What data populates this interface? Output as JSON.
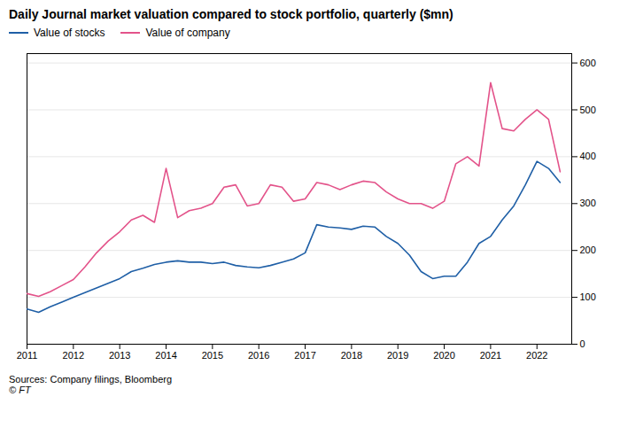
{
  "chart_data": {
    "type": "line",
    "title": "Daily Journal market valuation compared to stock portfolio, quarterly ($mn)",
    "x": [
      2011.0,
      2011.25,
      2011.5,
      2011.75,
      2012.0,
      2012.25,
      2012.5,
      2012.75,
      2013.0,
      2013.25,
      2013.5,
      2013.75,
      2014.0,
      2014.25,
      2014.5,
      2014.75,
      2015.0,
      2015.25,
      2015.5,
      2015.75,
      2016.0,
      2016.25,
      2016.5,
      2016.75,
      2017.0,
      2017.25,
      2017.5,
      2017.75,
      2018.0,
      2018.25,
      2018.5,
      2018.75,
      2019.0,
      2019.25,
      2019.5,
      2019.75,
      2020.0,
      2020.25,
      2020.5,
      2020.75,
      2021.0,
      2021.25,
      2021.5,
      2021.75,
      2022.0,
      2022.25,
      2022.5
    ],
    "series": [
      {
        "name": "Value of stocks",
        "color": "#1f5fa6",
        "values": [
          75,
          68,
          80,
          90,
          100,
          110,
          120,
          130,
          140,
          155,
          162,
          170,
          175,
          178,
          175,
          175,
          172,
          175,
          168,
          165,
          163,
          168,
          175,
          182,
          195,
          255,
          250,
          248,
          245,
          252,
          250,
          230,
          215,
          190,
          155,
          140,
          145,
          145,
          175,
          215,
          230,
          265,
          295,
          340,
          390,
          375,
          345
        ]
      },
      {
        "name": "Value of company",
        "color": "#e3538a",
        "values": [
          108,
          102,
          112,
          125,
          138,
          165,
          195,
          220,
          240,
          265,
          275,
          260,
          375,
          270,
          285,
          290,
          300,
          335,
          340,
          295,
          300,
          340,
          335,
          305,
          310,
          345,
          340,
          330,
          340,
          348,
          345,
          325,
          310,
          300,
          300,
          290,
          305,
          385,
          400,
          380,
          558,
          460,
          455,
          480,
          500,
          480,
          368
        ]
      }
    ],
    "xlim": [
      2011.0,
      2022.75
    ],
    "ylim": [
      0,
      620
    ],
    "xticks": [
      2011,
      2012,
      2013,
      2014,
      2015,
      2016,
      2017,
      2018,
      2019,
      2020,
      2021,
      2022
    ],
    "yticks": [
      0,
      100,
      200,
      300,
      400,
      500,
      600
    ],
    "grid": "y",
    "legend": "top",
    "source": [
      "Sources: Company filings, Bloomberg",
      "© FT"
    ]
  }
}
